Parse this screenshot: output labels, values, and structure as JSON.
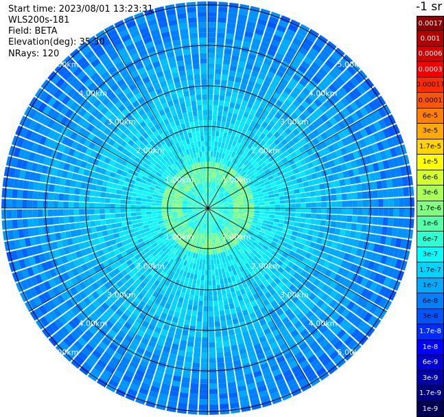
{
  "info": {
    "start_time": "Start time: 2023/08/01 13:23:31",
    "instrument": "WLS200s-181",
    "field": "Field: BETA",
    "elevation": "Elevation(deg): 35.30",
    "nrays": "NRays: 120"
  },
  "colorbar": {
    "unit": "-1 sr",
    "labels": [
      "0.0017",
      "0.001",
      "0.0006",
      "0.0003",
      "0.00017",
      "0.0001",
      "6e-5",
      "3e-5",
      "1.7e-5",
      "1e-5",
      "6e-6",
      "3e-6",
      "1.7e-6",
      "1e-6",
      "6e-7",
      "3e-7",
      "1.7e-7",
      "1e-7",
      "6e-8",
      "3e-8",
      "1.7e-8",
      "1e-8",
      "6e-9",
      "3e-9",
      "1.7e-9",
      "1e-9"
    ],
    "colors": [
      "#8b0000",
      "#b20000",
      "#d40000",
      "#f50000",
      "#ff2a00",
      "#ff5500",
      "#ff8000",
      "#ffaa00",
      "#ffd400",
      "#ffff00",
      "#d4ff2b",
      "#aaff55",
      "#80ff80",
      "#55ffaa",
      "#2bffd4",
      "#00ffff",
      "#00d4ff",
      "#00aaff",
      "#0080ff",
      "#0055ff",
      "#002bff",
      "#0000ff",
      "#0000d4",
      "#0000aa",
      "#000080",
      "#000055"
    ],
    "text_colors": [
      "#ffffff",
      "#ffffff",
      "#ffffff",
      "#ffffff",
      "#000000",
      "#000000",
      "#000000",
      "#000000",
      "#000000",
      "#000000",
      "#000000",
      "#000000",
      "#000000",
      "#000000",
      "#000000",
      "#000000",
      "#000000",
      "#000000",
      "#000000",
      "#000000",
      "#ffffff",
      "#ffffff",
      "#ffffff",
      "#ffffff",
      "#ffffff",
      "#ffffff"
    ]
  },
  "range_labels": [
    "1.00km",
    "2.00km",
    "3.00km",
    "4.00km",
    "5.00km"
  ]
}
